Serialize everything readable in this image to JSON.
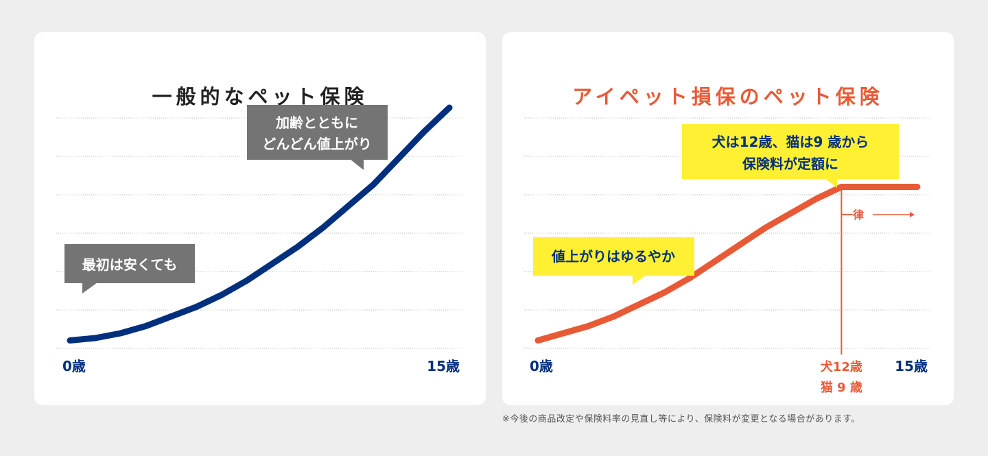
{
  "colors": {
    "navy": "#002f7d",
    "orange": "#e85a35",
    "gray_bubble": "#747474",
    "yellow_bubble": "#fff033",
    "grid": "#b8b8b8"
  },
  "chart_data": [
    {
      "type": "line",
      "title": "一般的なペット保険",
      "series_color": "#002f7d",
      "x_ticks": [
        "0歳",
        "15歳"
      ],
      "xlim": [
        0,
        15
      ],
      "ylim": [
        0,
        100
      ],
      "grid": true,
      "x": [
        0,
        1,
        2,
        3,
        4,
        5,
        6,
        7,
        8,
        9,
        10,
        11,
        12,
        13,
        14,
        15
      ],
      "values": [
        3,
        4,
        6,
        9,
        13,
        17,
        22,
        28,
        35,
        42,
        50,
        59,
        68,
        79,
        90,
        100
      ],
      "annotations": [
        {
          "lines": [
            "最初は安くても"
          ],
          "style": "gray"
        },
        {
          "lines": [
            "加齢とともに",
            "どんどん値上がり"
          ],
          "style": "gray"
        }
      ]
    },
    {
      "type": "line",
      "title": "アイペット損保のペット保険",
      "series_color": "#e85a35",
      "x_ticks": [
        "0歳",
        "15歳"
      ],
      "marker_label": [
        "犬12歳",
        "猫 9 歳"
      ],
      "flat_label": "一律",
      "xlim": [
        0,
        15
      ],
      "ylim": [
        0,
        100
      ],
      "grid": true,
      "x": [
        0,
        1,
        2,
        3,
        4,
        5,
        6,
        7,
        8,
        9,
        10,
        11,
        12,
        13,
        14,
        15
      ],
      "values": [
        3,
        6,
        9,
        13,
        18,
        23,
        29,
        36,
        43,
        50,
        56,
        62,
        67,
        67,
        67,
        67
      ],
      "annotations": [
        {
          "lines": [
            "値上がりはゆるやか"
          ],
          "style": "yellow"
        },
        {
          "lines": [
            "犬は12歳、猫は9 歳から",
            "保険料が定額に"
          ],
          "style": "yellow"
        }
      ]
    }
  ],
  "footnote": "※今後の商品改定や保険料率の見直し等により、保険料が変更となる場合があります。"
}
